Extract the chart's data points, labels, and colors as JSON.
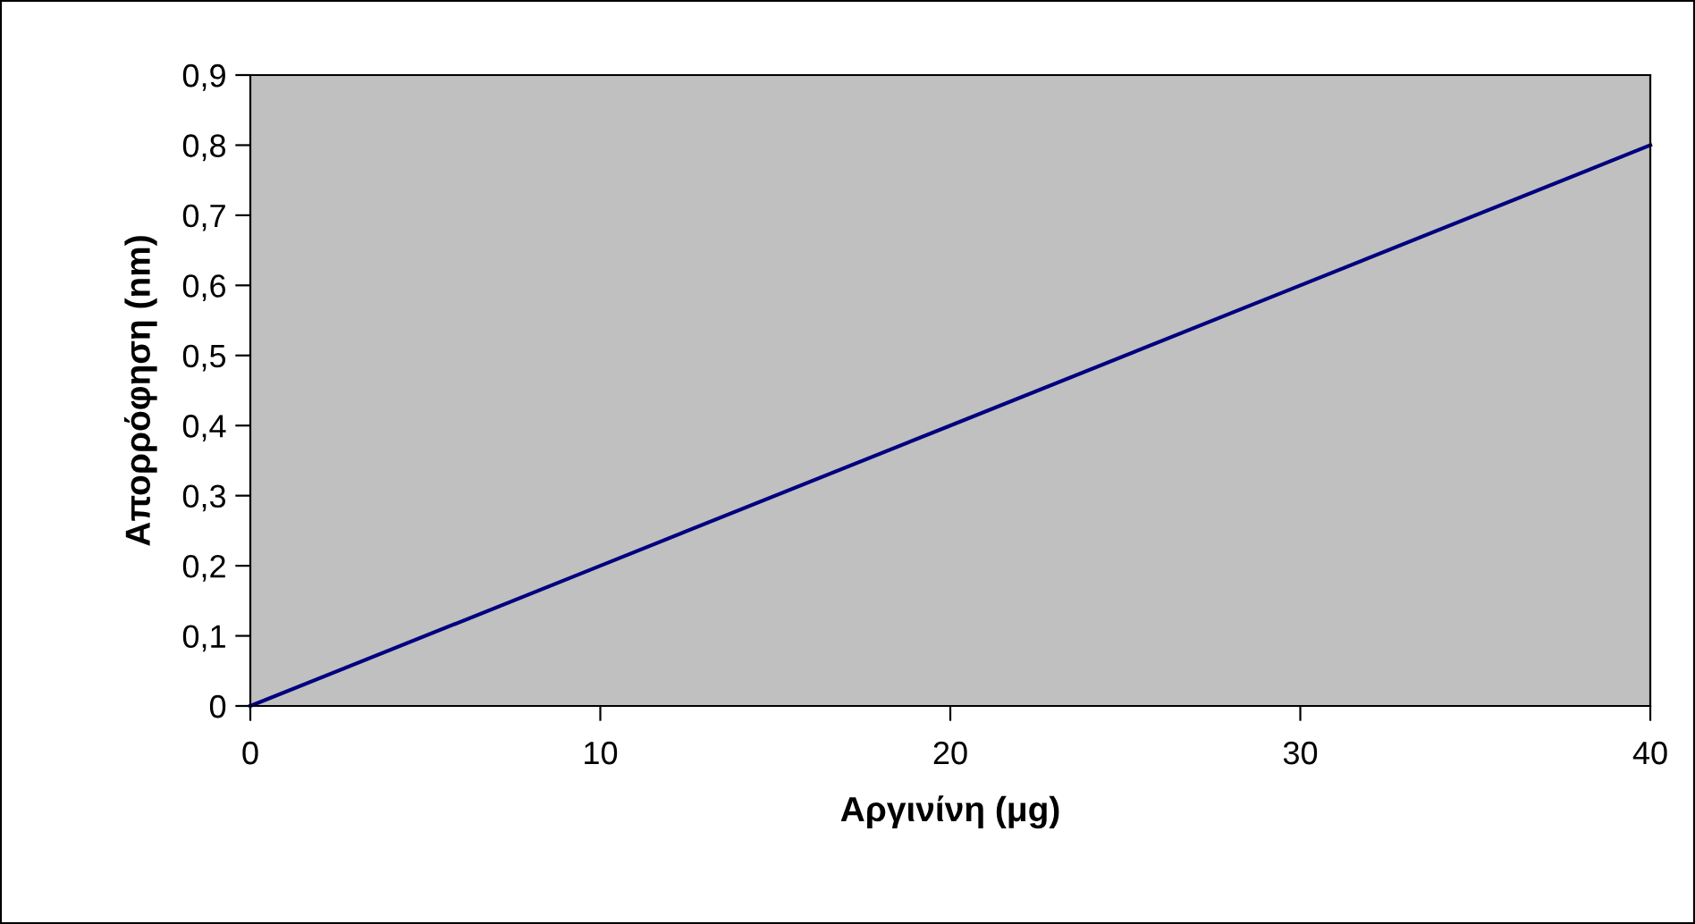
{
  "chart_data": {
    "type": "line",
    "xlabel": "Αργινίνη (μg)",
    "ylabel": "Απορρόφηση (nm)",
    "x": [
      0,
      10,
      20,
      30,
      40
    ],
    "series": [
      {
        "color": "#000080",
        "values": [
          0,
          0.2,
          0.4,
          0.6,
          0.8
        ]
      }
    ],
    "xlim": [
      0,
      40
    ],
    "xticks": [
      0,
      10,
      20,
      30,
      40
    ],
    "ylim": [
      0,
      0.9
    ],
    "yticks": [
      0,
      {
        "value": 0.1,
        "label": "0,1"
      },
      {
        "value": 0.2,
        "label": "0,2"
      },
      {
        "value": 0.3,
        "label": "0,3"
      },
      {
        "value": 0.4,
        "label": "0,4"
      },
      {
        "value": 0.5,
        "label": "0,5"
      },
      {
        "value": 0.6,
        "label": "0,6"
      },
      {
        "value": 0.7,
        "label": "0,7"
      },
      {
        "value": 0.8,
        "label": "0,8"
      },
      {
        "value": 0.9,
        "label": "0,9"
      }
    ],
    "grid": false,
    "legend": false,
    "marker": "none",
    "line_style": "solid"
  }
}
